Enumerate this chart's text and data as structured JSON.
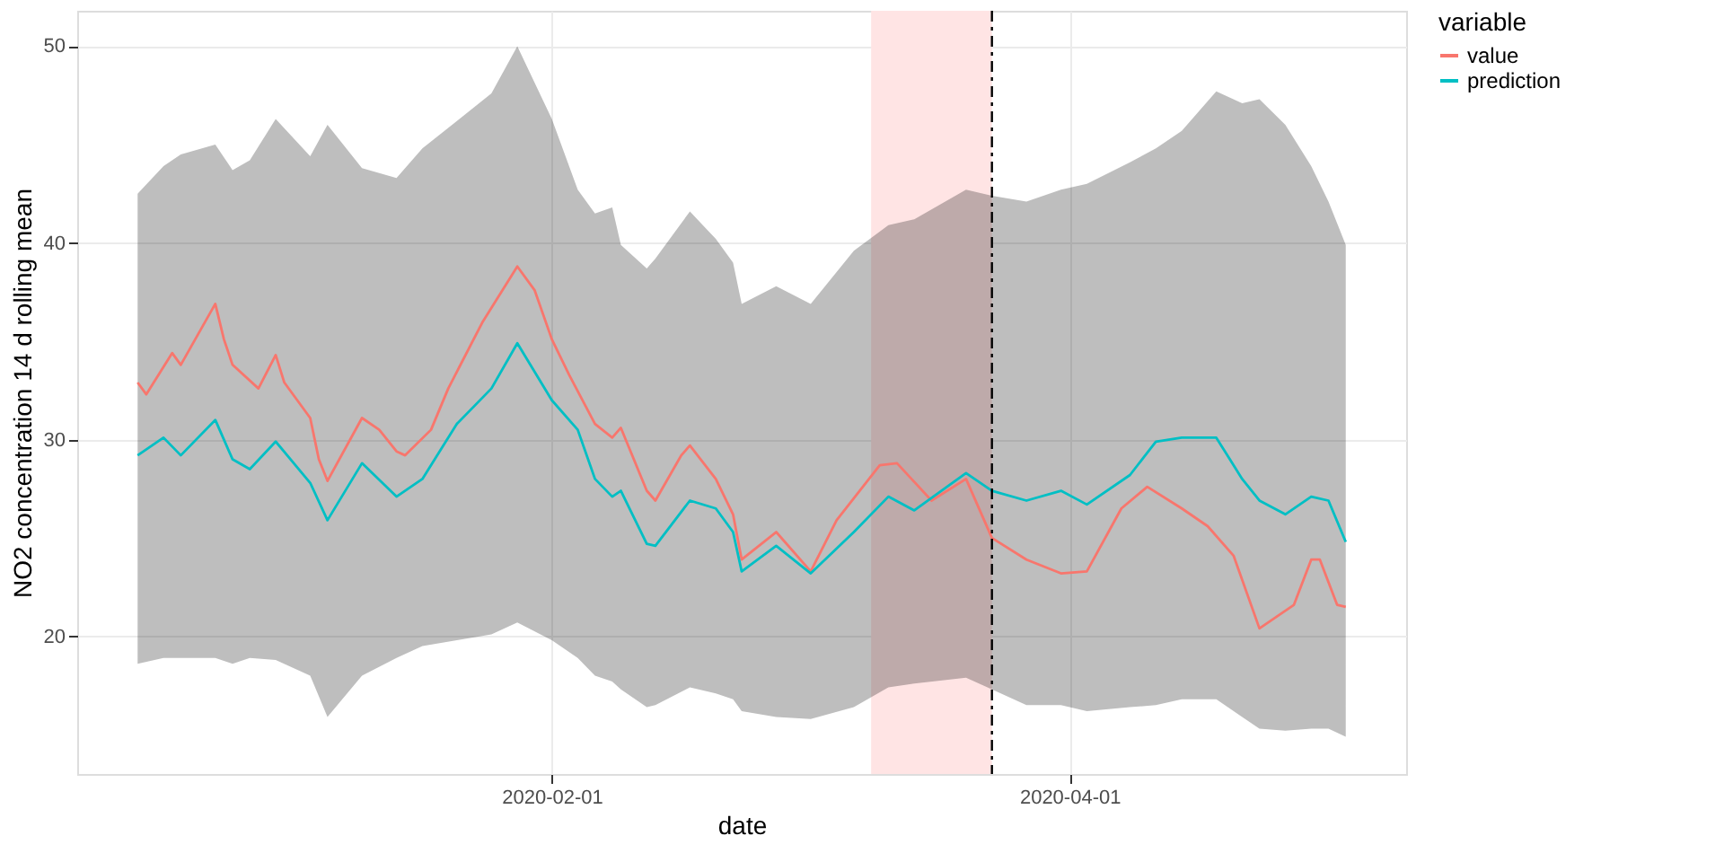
{
  "chart_data": {
    "type": "line",
    "xlabel": "date",
    "ylabel": "NO2 concentration 14 d rolling mean",
    "legend_title": "variable",
    "legend": "right",
    "grid": true,
    "xlim": [
      "2019-12-08",
      "2020-05-10"
    ],
    "xticks": [
      "2020-02-01",
      "2020-04-01"
    ],
    "ylim": [
      13,
      51.8
    ],
    "yticks": [
      20,
      30,
      40,
      50
    ],
    "series": [
      {
        "name": "value",
        "color": "#f8766d",
        "x": [
          "2019-12-15",
          "2019-12-16",
          "2019-12-19",
          "2019-12-20",
          "2019-12-24",
          "2019-12-25",
          "2019-12-26",
          "2019-12-29",
          "2019-12-31",
          "2020-01-01",
          "2020-01-04",
          "2020-01-05",
          "2020-01-06",
          "2020-01-10",
          "2020-01-12",
          "2020-01-14",
          "2020-01-15",
          "2020-01-18",
          "2020-01-20",
          "2020-01-24",
          "2020-01-28",
          "2020-01-30",
          "2020-02-01",
          "2020-02-03",
          "2020-02-06",
          "2020-02-08",
          "2020-02-09",
          "2020-02-12",
          "2020-02-13",
          "2020-02-16",
          "2020-02-17",
          "2020-02-20",
          "2020-02-22",
          "2020-02-23",
          "2020-02-27",
          "2020-03-02",
          "2020-03-05",
          "2020-03-10",
          "2020-03-12",
          "2020-03-16",
          "2020-03-20",
          "2020-03-23",
          "2020-03-27",
          "2020-03-31",
          "2020-04-03",
          "2020-04-07",
          "2020-04-10",
          "2020-04-14",
          "2020-04-17",
          "2020-04-20",
          "2020-04-23",
          "2020-04-27",
          "2020-04-29",
          "2020-04-30",
          "2020-05-02",
          "2020-05-03"
        ],
        "values": [
          32.9,
          32.3,
          34.4,
          33.8,
          36.9,
          35.1,
          33.8,
          32.6,
          34.3,
          32.9,
          31.1,
          29.0,
          27.9,
          31.1,
          30.5,
          29.4,
          29.2,
          30.5,
          32.6,
          36.0,
          38.8,
          37.6,
          35.1,
          33.3,
          30.8,
          30.1,
          30.6,
          27.4,
          26.9,
          29.2,
          29.7,
          28.0,
          26.2,
          23.9,
          25.3,
          23.3,
          25.9,
          28.7,
          28.8,
          26.9,
          28.0,
          25.0,
          23.9,
          23.2,
          23.3,
          26.5,
          27.6,
          26.5,
          25.6,
          24.1,
          20.4,
          21.6,
          23.9,
          23.9,
          21.6,
          21.5
        ]
      },
      {
        "name": "prediction",
        "color": "#00bfc4",
        "x": [
          "2019-12-15",
          "2019-12-18",
          "2019-12-20",
          "2019-12-24",
          "2019-12-26",
          "2019-12-28",
          "2019-12-31",
          "2020-01-04",
          "2020-01-06",
          "2020-01-10",
          "2020-01-14",
          "2020-01-17",
          "2020-01-21",
          "2020-01-25",
          "2020-01-28",
          "2020-02-01",
          "2020-02-04",
          "2020-02-06",
          "2020-02-08",
          "2020-02-09",
          "2020-02-12",
          "2020-02-13",
          "2020-02-17",
          "2020-02-20",
          "2020-02-22",
          "2020-02-23",
          "2020-02-27",
          "2020-03-02",
          "2020-03-07",
          "2020-03-11",
          "2020-03-14",
          "2020-03-20",
          "2020-03-23",
          "2020-03-27",
          "2020-03-31",
          "2020-04-03",
          "2020-04-08",
          "2020-04-11",
          "2020-04-14",
          "2020-04-18",
          "2020-04-21",
          "2020-04-23",
          "2020-04-26",
          "2020-04-29",
          "2020-05-01",
          "2020-05-03"
        ],
        "values": [
          29.2,
          30.1,
          29.2,
          31.0,
          29.0,
          28.5,
          29.9,
          27.8,
          25.9,
          28.8,
          27.1,
          28.0,
          30.8,
          32.6,
          34.9,
          32.0,
          30.5,
          28.0,
          27.1,
          27.4,
          24.7,
          24.6,
          26.9,
          26.5,
          25.3,
          23.3,
          24.6,
          23.2,
          25.3,
          27.1,
          26.4,
          28.3,
          27.4,
          26.9,
          27.4,
          26.7,
          28.2,
          29.9,
          30.1,
          30.1,
          28.0,
          26.9,
          26.2,
          27.1,
          26.9,
          24.8
        ],
        "lower": [
          18.6,
          18.9,
          18.9,
          18.9,
          18.6,
          18.9,
          18.8,
          18.0,
          15.9,
          18.0,
          18.9,
          19.5,
          19.8,
          20.1,
          20.7,
          19.8,
          18.9,
          18.0,
          17.7,
          17.3,
          16.4,
          16.5,
          17.4,
          17.1,
          16.8,
          16.2,
          15.9,
          15.8,
          16.4,
          17.4,
          17.6,
          17.9,
          17.3,
          16.5,
          16.5,
          16.2,
          16.4,
          16.5,
          16.8,
          16.8,
          15.9,
          15.3,
          15.2,
          15.3,
          15.3,
          14.9
        ],
        "upper": [
          42.5,
          43.9,
          44.5,
          45.0,
          43.7,
          44.2,
          46.3,
          44.4,
          46.0,
          43.8,
          43.3,
          44.8,
          46.2,
          47.6,
          50.0,
          46.3,
          42.7,
          41.5,
          41.8,
          39.9,
          38.7,
          39.2,
          41.6,
          40.2,
          39.0,
          36.9,
          37.8,
          36.9,
          39.6,
          40.9,
          41.2,
          42.7,
          42.4,
          42.1,
          42.7,
          43.0,
          44.1,
          44.8,
          45.7,
          47.7,
          47.1,
          47.3,
          46.0,
          43.9,
          42.1,
          39.9
        ]
      }
    ],
    "bands": [
      {
        "axis": "x",
        "from": "2020-03-09",
        "to": "2020-03-23",
        "color": "#ffe4e4"
      }
    ],
    "ref_lines": [
      {
        "axis": "x",
        "value": "2020-03-23",
        "line_style": "dashed",
        "color": "#000000"
      }
    ]
  }
}
